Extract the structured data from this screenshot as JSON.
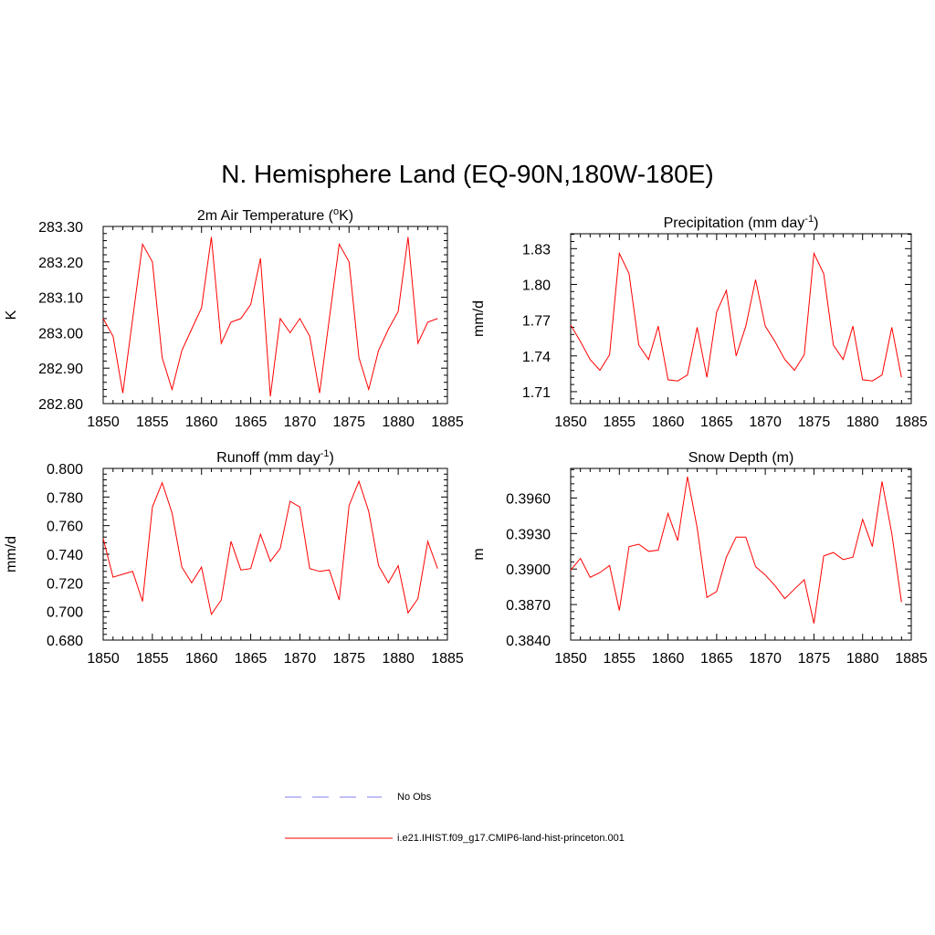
{
  "figure": {
    "title": "N. Hemisphere Land (EQ-90N,180W-180E)"
  },
  "legend": [
    {
      "label": "No Obs",
      "color": "#9999ee",
      "style": "dashed"
    },
    {
      "label": "i.e21.IHIST.f09_g17.CMIP6-land-hist-princeton.001",
      "color": "#ff0000",
      "style": "solid"
    }
  ],
  "chart_data": [
    {
      "type": "line",
      "title": "2m Air Temperature (",
      "title_sup": "o",
      "title_after": "K)",
      "ylabel": "K",
      "xlim": [
        1850,
        1885
      ],
      "ylim": [
        282.8,
        283.3
      ],
      "xticks": [
        1850,
        1855,
        1860,
        1865,
        1870,
        1875,
        1880,
        1885
      ],
      "yticks": [
        "282.80",
        "282.90",
        "283.00",
        "283.10",
        "283.20",
        "283.30"
      ],
      "series": [
        {
          "color": "#ff0000",
          "x": [
            1850,
            1851,
            1852,
            1853,
            1854,
            1855,
            1856,
            1857,
            1858,
            1859,
            1860,
            1861,
            1862,
            1863,
            1864,
            1865,
            1866,
            1867,
            1868,
            1869,
            1870,
            1871,
            1872,
            1873,
            1874,
            1875,
            1876,
            1877,
            1878,
            1879,
            1880,
            1881,
            1882,
            1883,
            1884
          ],
          "y": [
            283.04,
            282.99,
            282.83,
            283.04,
            283.25,
            283.2,
            282.93,
            282.84,
            282.95,
            283.01,
            283.07,
            283.27,
            282.97,
            283.03,
            283.04,
            283.08,
            283.21,
            282.82,
            283.04,
            283.0,
            283.04,
            282.99,
            282.83,
            283.04,
            283.25,
            283.2,
            282.93,
            282.84,
            282.95,
            283.01,
            283.06,
            283.27,
            282.97,
            283.03,
            283.04
          ]
        }
      ]
    },
    {
      "type": "line",
      "title": "Precipitation (mm day",
      "title_sup": "-1",
      "title_after": ")",
      "ylabel": "mm/d",
      "xlim": [
        1850,
        1885
      ],
      "ylim": [
        1.7,
        1.8425
      ],
      "xticks": [
        1850,
        1855,
        1860,
        1865,
        1870,
        1875,
        1880,
        1885
      ],
      "yticks": [
        "1.71",
        "1.74",
        "1.77",
        "1.80",
        "1.83"
      ],
      "series": [
        {
          "color": "#ff0000",
          "x": [
            1850,
            1851,
            1852,
            1853,
            1854,
            1855,
            1856,
            1857,
            1858,
            1859,
            1860,
            1861,
            1862,
            1863,
            1864,
            1865,
            1866,
            1867,
            1868,
            1869,
            1870,
            1871,
            1872,
            1873,
            1874,
            1875,
            1876,
            1877,
            1878,
            1879,
            1880,
            1881,
            1882,
            1883,
            1884
          ],
          "y": [
            1.766,
            1.752,
            1.737,
            1.728,
            1.741,
            1.826,
            1.809,
            1.749,
            1.737,
            1.765,
            1.72,
            1.719,
            1.724,
            1.764,
            1.722,
            1.777,
            1.795,
            1.74,
            1.765,
            1.804,
            1.765,
            1.752,
            1.737,
            1.728,
            1.741,
            1.826,
            1.809,
            1.749,
            1.737,
            1.765,
            1.72,
            1.719,
            1.724,
            1.764,
            1.722
          ]
        }
      ]
    },
    {
      "type": "line",
      "title": "Runoff (mm day",
      "title_sup": "-1",
      "title_after": ")",
      "ylabel": "mm/d",
      "xlim": [
        1850,
        1885
      ],
      "ylim": [
        0.68,
        0.8
      ],
      "xticks": [
        1850,
        1855,
        1860,
        1865,
        1870,
        1875,
        1880,
        1885
      ],
      "yticks": [
        "0.680",
        "0.700",
        "0.720",
        "0.740",
        "0.760",
        "0.780",
        "0.800"
      ],
      "series": [
        {
          "color": "#ff0000",
          "x": [
            1850,
            1851,
            1852,
            1853,
            1854,
            1855,
            1856,
            1857,
            1858,
            1859,
            1860,
            1861,
            1862,
            1863,
            1864,
            1865,
            1866,
            1867,
            1868,
            1869,
            1870,
            1871,
            1872,
            1873,
            1874,
            1875,
            1876,
            1877,
            1878,
            1879,
            1880,
            1881,
            1882,
            1883,
            1884
          ],
          "y": [
            0.751,
            0.724,
            0.726,
            0.728,
            0.707,
            0.773,
            0.79,
            0.769,
            0.731,
            0.72,
            0.731,
            0.698,
            0.708,
            0.749,
            0.729,
            0.73,
            0.754,
            0.735,
            0.744,
            0.777,
            0.773,
            0.73,
            0.728,
            0.729,
            0.708,
            0.774,
            0.791,
            0.77,
            0.732,
            0.72,
            0.732,
            0.699,
            0.709,
            0.749,
            0.73
          ]
        }
      ]
    },
    {
      "type": "line",
      "title": "Snow Depth (m)",
      "title_sup": "",
      "title_after": "",
      "ylabel": "m",
      "xlim": [
        1850,
        1885
      ],
      "ylim": [
        0.384,
        0.3985
      ],
      "xticks": [
        1850,
        1855,
        1860,
        1865,
        1870,
        1875,
        1880,
        1885
      ],
      "yticks": [
        "0.3840",
        "0.3870",
        "0.3900",
        "0.3930",
        "0.3960"
      ],
      "series": [
        {
          "color": "#ff0000",
          "x": [
            1850,
            1851,
            1852,
            1853,
            1854,
            1855,
            1856,
            1857,
            1858,
            1859,
            1860,
            1861,
            1862,
            1863,
            1864,
            1865,
            1866,
            1867,
            1868,
            1869,
            1870,
            1871,
            1872,
            1873,
            1874,
            1875,
            1876,
            1877,
            1878,
            1879,
            1880,
            1881,
            1882,
            1883,
            1884
          ],
          "y": [
            0.3899,
            0.3909,
            0.3893,
            0.3897,
            0.3903,
            0.3865,
            0.3919,
            0.3921,
            0.3915,
            0.3916,
            0.3947,
            0.3924,
            0.3978,
            0.3935,
            0.3876,
            0.3881,
            0.391,
            0.3927,
            0.3927,
            0.3902,
            0.3895,
            0.3886,
            0.3875,
            0.3883,
            0.3891,
            0.3854,
            0.3911,
            0.3914,
            0.3908,
            0.391,
            0.3942,
            0.3919,
            0.3974,
            0.393,
            0.3872
          ]
        }
      ]
    }
  ]
}
